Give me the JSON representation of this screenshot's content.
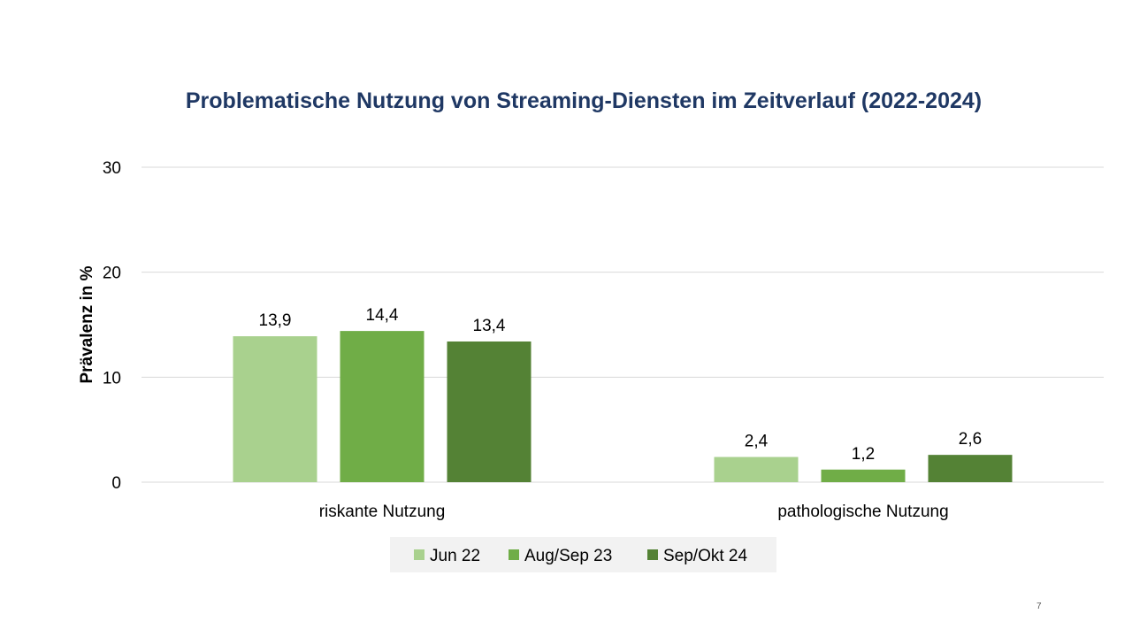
{
  "page_number": "7",
  "colors": {
    "title": "#1f3864",
    "grid": "#d9d9d9",
    "legend_bg": "#f2f2f2"
  },
  "chart_data": {
    "type": "bar",
    "title": "Problematische Nutzung von Streaming-Diensten im Zeitverlauf (2022-2024)",
    "xlabel": "",
    "ylabel": "Prävalenz in %",
    "ylim": [
      0,
      30
    ],
    "yticks": [
      0,
      10,
      20,
      30
    ],
    "grid": true,
    "legend_position": "bottom",
    "categories": [
      "riskante Nutzung",
      "pathologische Nutzung"
    ],
    "series": [
      {
        "name": "Jun 22",
        "color": "#a9d18e",
        "values": [
          13.9,
          2.4
        ],
        "labels": [
          "13,9",
          "2,4"
        ]
      },
      {
        "name": "Aug/Sep 23",
        "color": "#70ad47",
        "values": [
          14.4,
          1.2
        ],
        "labels": [
          "14,4",
          "1,2"
        ]
      },
      {
        "name": "Sep/Okt 24",
        "color": "#548235",
        "values": [
          13.4,
          2.6
        ],
        "labels": [
          "13,4",
          "2,6"
        ]
      }
    ]
  }
}
